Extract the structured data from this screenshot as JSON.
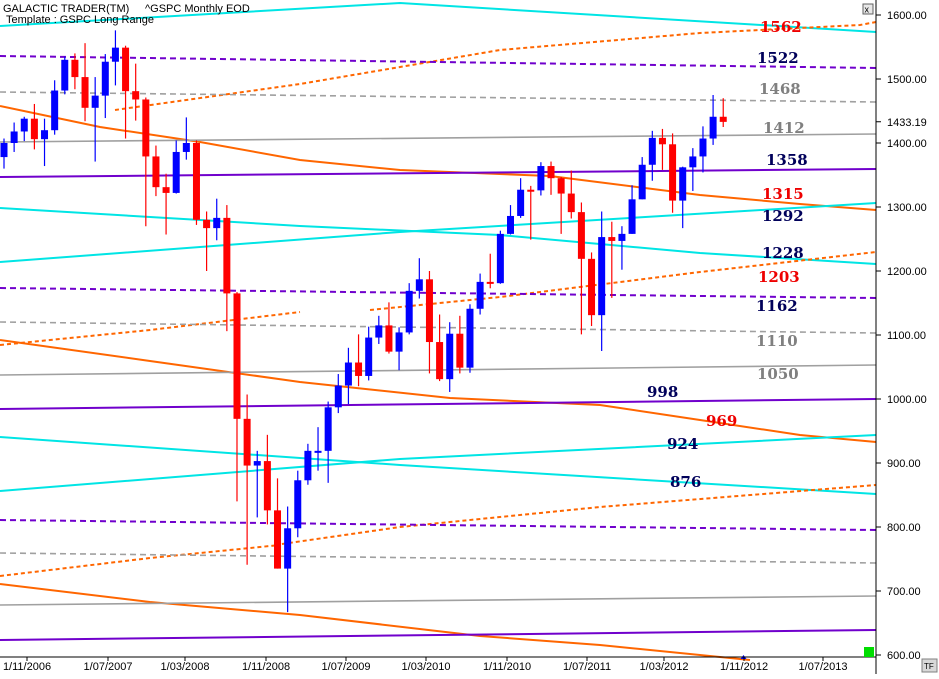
{
  "header": {
    "app": "GALACTIC TRADER(TM)",
    "symbol": "^GSPC Monthly EOD",
    "template": "Template : GSPC Long Range",
    "badge_label": "TF"
  },
  "chart_data": {
    "type": "candlestick",
    "title": "^GSPC Monthly EOD",
    "ylim": [
      600,
      1600
    ],
    "y_ticks": [
      "1600.00",
      "1500.00",
      "1400.00",
      "1300.00",
      "1200.00",
      "1100.00",
      "1000.00",
      "900.00",
      "800.00",
      "700.00",
      "600.00"
    ],
    "x_ticks": [
      "1/11/2006",
      "1/07/2007",
      "1/03/2008",
      "1/11/2008",
      "1/07/2009",
      "1/03/2010",
      "1/11/2010",
      "1/07/2011",
      "1/03/2012",
      "1/11/2012",
      "1/07/2013"
    ],
    "last_price": "1433.19",
    "colors": {
      "up": "#0000ff",
      "down": "#ff0000",
      "cyan": "#00e5e5",
      "purple": "#7000cc",
      "orange": "#ff6600",
      "gray": "#a0a0a0"
    },
    "candles": [
      {
        "t": "2006-11",
        "o": 1378,
        "h": 1407,
        "l": 1360,
        "c": 1400
      },
      {
        "t": "2006-12",
        "o": 1400,
        "h": 1432,
        "l": 1386,
        "c": 1418
      },
      {
        "t": "2007-01",
        "o": 1418,
        "h": 1441,
        "l": 1403,
        "c": 1438
      },
      {
        "t": "2007-02",
        "o": 1438,
        "h": 1461,
        "l": 1390,
        "c": 1406
      },
      {
        "t": "2007-03",
        "o": 1406,
        "h": 1438,
        "l": 1364,
        "c": 1420
      },
      {
        "t": "2007-04",
        "o": 1420,
        "h": 1498,
        "l": 1413,
        "c": 1482
      },
      {
        "t": "2007-05",
        "o": 1482,
        "h": 1535,
        "l": 1476,
        "c": 1530
      },
      {
        "t": "2007-06",
        "o": 1530,
        "h": 1540,
        "l": 1484,
        "c": 1503
      },
      {
        "t": "2007-07",
        "o": 1503,
        "h": 1556,
        "l": 1434,
        "c": 1455
      },
      {
        "t": "2007-08",
        "o": 1455,
        "h": 1503,
        "l": 1371,
        "c": 1474
      },
      {
        "t": "2007-09",
        "o": 1474,
        "h": 1539,
        "l": 1439,
        "c": 1527
      },
      {
        "t": "2007-10",
        "o": 1527,
        "h": 1576,
        "l": 1490,
        "c": 1549
      },
      {
        "t": "2007-11",
        "o": 1549,
        "h": 1552,
        "l": 1407,
        "c": 1481
      },
      {
        "t": "2007-12",
        "o": 1481,
        "h": 1524,
        "l": 1435,
        "c": 1468
      },
      {
        "t": "2008-01",
        "o": 1468,
        "h": 1471,
        "l": 1270,
        "c": 1379
      },
      {
        "t": "2008-02",
        "o": 1379,
        "h": 1396,
        "l": 1317,
        "c": 1331
      },
      {
        "t": "2008-03",
        "o": 1331,
        "h": 1352,
        "l": 1257,
        "c": 1322
      },
      {
        "t": "2008-04",
        "o": 1322,
        "h": 1404,
        "l": 1321,
        "c": 1386
      },
      {
        "t": "2008-05",
        "o": 1386,
        "h": 1440,
        "l": 1374,
        "c": 1400
      },
      {
        "t": "2008-06",
        "o": 1400,
        "h": 1404,
        "l": 1272,
        "c": 1280
      },
      {
        "t": "2008-07",
        "o": 1280,
        "h": 1293,
        "l": 1200,
        "c": 1267
      },
      {
        "t": "2008-08",
        "o": 1267,
        "h": 1313,
        "l": 1248,
        "c": 1283
      },
      {
        "t": "2008-09",
        "o": 1283,
        "h": 1303,
        "l": 1106,
        "c": 1165
      },
      {
        "t": "2008-10",
        "o": 1165,
        "h": 1167,
        "l": 840,
        "c": 969
      },
      {
        "t": "2008-11",
        "o": 969,
        "h": 1007,
        "l": 741,
        "c": 896
      },
      {
        "t": "2008-12",
        "o": 896,
        "h": 919,
        "l": 815,
        "c": 903
      },
      {
        "t": "2009-01",
        "o": 903,
        "h": 944,
        "l": 804,
        "c": 826
      },
      {
        "t": "2009-02",
        "o": 826,
        "h": 876,
        "l": 735,
        "c": 735
      },
      {
        "t": "2009-03",
        "o": 735,
        "h": 832,
        "l": 667,
        "c": 798
      },
      {
        "t": "2009-04",
        "o": 798,
        "h": 888,
        "l": 784,
        "c": 873
      },
      {
        "t": "2009-05",
        "o": 873,
        "h": 930,
        "l": 866,
        "c": 919
      },
      {
        "t": "2009-06",
        "o": 919,
        "h": 956,
        "l": 888,
        "c": 919
      },
      {
        "t": "2009-07",
        "o": 919,
        "h": 996,
        "l": 869,
        "c": 987
      },
      {
        "t": "2009-08",
        "o": 987,
        "h": 1039,
        "l": 978,
        "c": 1021
      },
      {
        "t": "2009-09",
        "o": 1021,
        "h": 1080,
        "l": 992,
        "c": 1057
      },
      {
        "t": "2009-10",
        "o": 1057,
        "h": 1101,
        "l": 1020,
        "c": 1036
      },
      {
        "t": "2009-11",
        "o": 1036,
        "h": 1113,
        "l": 1029,
        "c": 1096
      },
      {
        "t": "2009-12",
        "o": 1096,
        "h": 1130,
        "l": 1086,
        "c": 1115
      },
      {
        "t": "2010-01",
        "o": 1115,
        "h": 1151,
        "l": 1071,
        "c": 1074
      },
      {
        "t": "2010-02",
        "o": 1074,
        "h": 1112,
        "l": 1045,
        "c": 1104
      },
      {
        "t": "2010-03",
        "o": 1104,
        "h": 1181,
        "l": 1101,
        "c": 1169
      },
      {
        "t": "2010-04",
        "o": 1169,
        "h": 1220,
        "l": 1157,
        "c": 1187
      },
      {
        "t": "2010-05",
        "o": 1187,
        "h": 1200,
        "l": 1040,
        "c": 1089
      },
      {
        "t": "2010-06",
        "o": 1089,
        "h": 1132,
        "l": 1028,
        "c": 1031
      },
      {
        "t": "2010-07",
        "o": 1031,
        "h": 1120,
        "l": 1011,
        "c": 1102
      },
      {
        "t": "2010-08",
        "o": 1102,
        "h": 1130,
        "l": 1040,
        "c": 1049
      },
      {
        "t": "2010-09",
        "o": 1049,
        "h": 1148,
        "l": 1041,
        "c": 1141
      },
      {
        "t": "2010-10",
        "o": 1141,
        "h": 1196,
        "l": 1132,
        "c": 1183
      },
      {
        "t": "2010-11",
        "o": 1183,
        "h": 1227,
        "l": 1173,
        "c": 1181
      },
      {
        "t": "2010-12",
        "o": 1181,
        "h": 1263,
        "l": 1180,
        "c": 1258
      },
      {
        "t": "2011-01",
        "o": 1258,
        "h": 1303,
        "l": 1257,
        "c": 1286
      },
      {
        "t": "2011-02",
        "o": 1286,
        "h": 1345,
        "l": 1283,
        "c": 1327
      },
      {
        "t": "2011-03",
        "o": 1327,
        "h": 1333,
        "l": 1249,
        "c": 1326
      },
      {
        "t": "2011-04",
        "o": 1326,
        "h": 1370,
        "l": 1318,
        "c": 1364
      },
      {
        "t": "2011-05",
        "o": 1364,
        "h": 1371,
        "l": 1319,
        "c": 1345
      },
      {
        "t": "2011-06",
        "o": 1345,
        "h": 1347,
        "l": 1258,
        "c": 1321
      },
      {
        "t": "2011-07",
        "o": 1321,
        "h": 1357,
        "l": 1282,
        "c": 1292
      },
      {
        "t": "2011-08",
        "o": 1292,
        "h": 1307,
        "l": 1101,
        "c": 1219
      },
      {
        "t": "2011-09",
        "o": 1219,
        "h": 1229,
        "l": 1114,
        "c": 1131
      },
      {
        "t": "2011-10",
        "o": 1131,
        "h": 1293,
        "l": 1075,
        "c": 1253
      },
      {
        "t": "2011-11",
        "o": 1253,
        "h": 1277,
        "l": 1158,
        "c": 1247
      },
      {
        "t": "2011-12",
        "o": 1247,
        "h": 1270,
        "l": 1202,
        "c": 1258
      },
      {
        "t": "2012-01",
        "o": 1258,
        "h": 1334,
        "l": 1258,
        "c": 1312
      },
      {
        "t": "2012-02",
        "o": 1312,
        "h": 1378,
        "l": 1312,
        "c": 1366
      },
      {
        "t": "2012-03",
        "o": 1366,
        "h": 1419,
        "l": 1341,
        "c": 1408
      },
      {
        "t": "2012-04",
        "o": 1408,
        "h": 1422,
        "l": 1358,
        "c": 1398
      },
      {
        "t": "2012-05",
        "o": 1398,
        "h": 1415,
        "l": 1291,
        "c": 1310
      },
      {
        "t": "2012-06",
        "o": 1310,
        "h": 1363,
        "l": 1267,
        "c": 1362
      },
      {
        "t": "2012-07",
        "o": 1362,
        "h": 1392,
        "l": 1325,
        "c": 1379
      },
      {
        "t": "2012-08",
        "o": 1379,
        "h": 1426,
        "l": 1354,
        "c": 1407
      },
      {
        "t": "2012-09",
        "o": 1407,
        "h": 1475,
        "l": 1397,
        "c": 1441
      },
      {
        "t": "2012-10",
        "o": 1441,
        "h": 1470,
        "l": 1425,
        "c": 1433
      }
    ],
    "level_labels": [
      {
        "text": "1562",
        "color": "red"
      },
      {
        "text": "1522",
        "color": "navy"
      },
      {
        "text": "1468",
        "color": "gray"
      },
      {
        "text": "1412",
        "color": "gray"
      },
      {
        "text": "1358",
        "color": "navy"
      },
      {
        "text": "1315",
        "color": "red"
      },
      {
        "text": "1292",
        "color": "navy"
      },
      {
        "text": "1228",
        "color": "navy"
      },
      {
        "text": "1203",
        "color": "red"
      },
      {
        "text": "1162",
        "color": "navy"
      },
      {
        "text": "1110",
        "color": "gray"
      },
      {
        "text": "1050",
        "color": "gray"
      },
      {
        "text": "998",
        "color": "navy"
      },
      {
        "text": "969",
        "color": "red"
      },
      {
        "text": "924",
        "color": "navy"
      },
      {
        "text": "876",
        "color": "navy"
      }
    ]
  }
}
